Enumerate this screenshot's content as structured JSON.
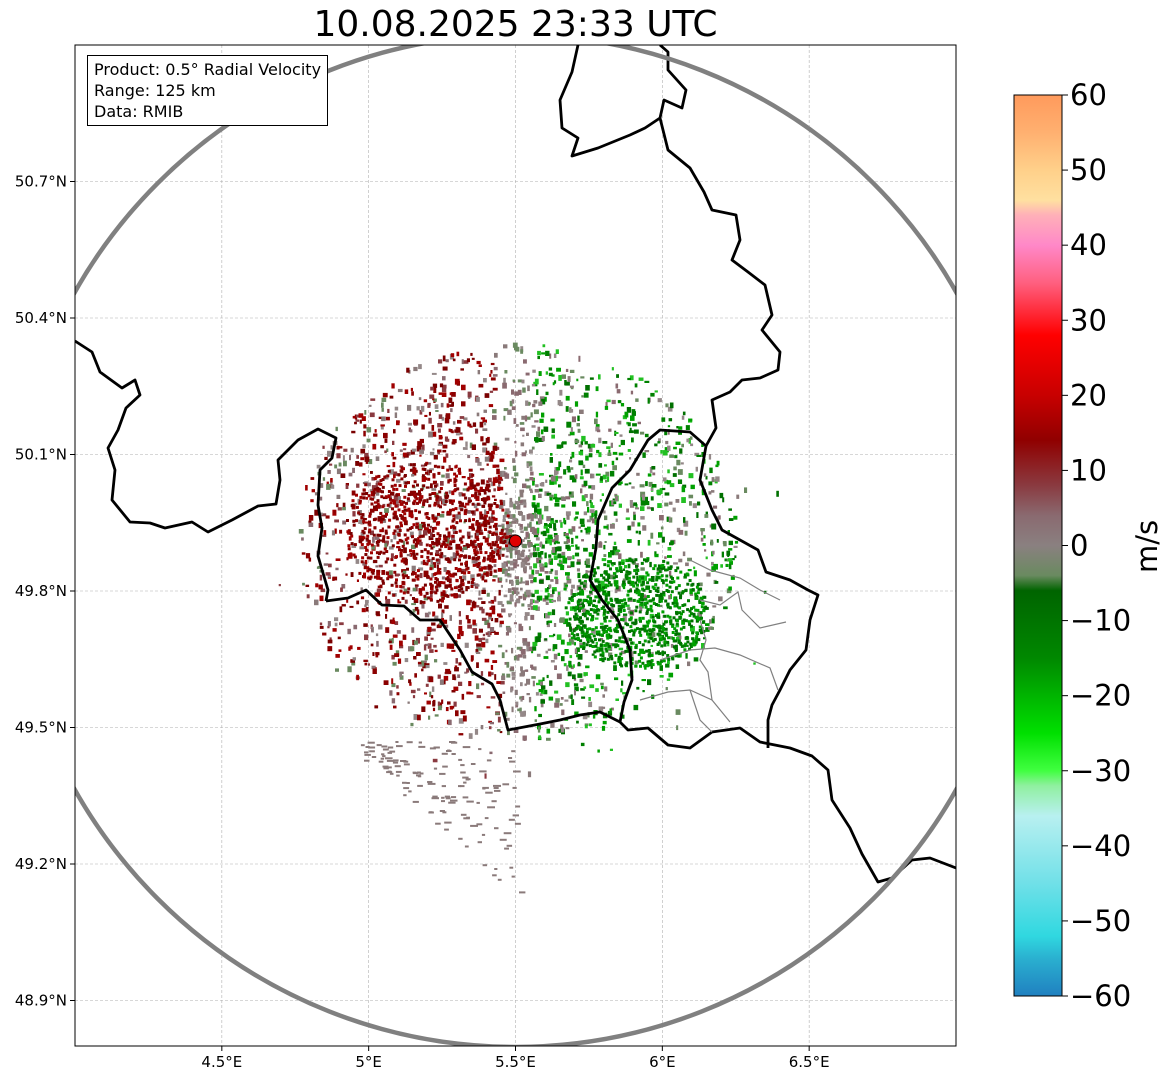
{
  "title": "10.08.2025 23:33 UTC",
  "info_box": {
    "product": "Product: 0.5° Radial Velocity",
    "range": "Range: 125 km",
    "data": "Data: RMIB"
  },
  "map": {
    "lon_range": [
      4.0,
      7.0
    ],
    "lat_range": [
      48.8,
      51.0
    ],
    "lon_ticks": [
      4.5,
      5.0,
      5.5,
      6.0,
      6.5
    ],
    "lon_tick_labels": [
      "4.5°E",
      "5°E",
      "5.5°E",
      "6°E",
      "6.5°E"
    ],
    "lat_ticks": [
      48.9,
      49.2,
      49.5,
      49.8,
      50.1,
      50.4,
      50.7
    ],
    "lat_tick_labels": [
      "48.9°N",
      "49.2°N",
      "49.5°N",
      "49.8°N",
      "50.1°N",
      "50.4°N",
      "50.7°N"
    ],
    "radar_site": {
      "lon": 5.5,
      "lat": 49.91
    },
    "range_ring_km": 125,
    "gridlines": true
  },
  "colorbar": {
    "label": "m/s",
    "vmin": -60,
    "vmax": 60,
    "ticks": [
      60,
      50,
      40,
      30,
      20,
      10,
      0,
      -10,
      -20,
      -30,
      -40,
      -50,
      -60
    ],
    "tick_labels": [
      "60",
      "50",
      "40",
      "30",
      "20",
      "10",
      "0",
      "−10",
      "−20",
      "−30",
      "−40",
      "−50",
      "−60"
    ],
    "stops": [
      {
        "v": 60,
        "color": "#ff9a5c"
      },
      {
        "v": 55,
        "color": "#ffb070"
      },
      {
        "v": 50,
        "color": "#ffd08a"
      },
      {
        "v": 46,
        "color": "#ffe0a0"
      },
      {
        "v": 44,
        "color": "#ffb0b8"
      },
      {
        "v": 40,
        "color": "#ff88c8"
      },
      {
        "v": 35,
        "color": "#ff6080"
      },
      {
        "v": 28,
        "color": "#ff0000"
      },
      {
        "v": 20,
        "color": "#c80000"
      },
      {
        "v": 14,
        "color": "#900000"
      },
      {
        "v": 8,
        "color": "#8a3a40"
      },
      {
        "v": 4,
        "color": "#8a6a70"
      },
      {
        "v": 0,
        "color": "#8a8080"
      },
      {
        "v": -4,
        "color": "#6a8a60"
      },
      {
        "v": -6,
        "color": "#006400"
      },
      {
        "v": -15,
        "color": "#008800"
      },
      {
        "v": -25,
        "color": "#00e000"
      },
      {
        "v": -30,
        "color": "#40ff40"
      },
      {
        "v": -32,
        "color": "#90f0a0"
      },
      {
        "v": -36,
        "color": "#b8f0f0"
      },
      {
        "v": -45,
        "color": "#70e0e8"
      },
      {
        "v": -52,
        "color": "#30d8e0"
      },
      {
        "v": -55,
        "color": "#2ab0d0"
      },
      {
        "v": -60,
        "color": "#2080c0"
      }
    ]
  },
  "colors": {
    "approaching": "#008000",
    "receding": "#8b0000",
    "near_zero": "#8a7a7a",
    "border": "#000000",
    "range_ring": "#808080",
    "radar_marker": "#e00000"
  }
}
